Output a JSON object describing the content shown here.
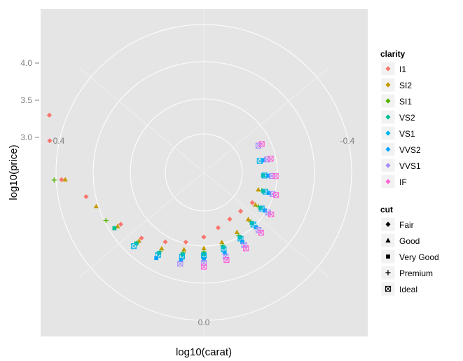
{
  "chart_data": {
    "type": "scatter",
    "coord": "polar",
    "title": "",
    "xlabel": "log10(carat)",
    "ylabel": "log10(price)",
    "theta_ticks": [
      "0.4",
      "-0.4",
      "0.0"
    ],
    "r_ticks": [
      "3.0",
      "3.5",
      "4.0"
    ],
    "grid": true,
    "legend_position": "right",
    "color_legend": {
      "title": "clarity",
      "items": [
        {
          "label": "I1",
          "color": "#F8766D"
        },
        {
          "label": "SI2",
          "color": "#C49A00"
        },
        {
          "label": "SI1",
          "color": "#53B400"
        },
        {
          "label": "VS2",
          "color": "#00C094"
        },
        {
          "label": "VS1",
          "color": "#00B6EB"
        },
        {
          "label": "VVS2",
          "color": "#06A4FF"
        },
        {
          "label": "VVS1",
          "color": "#A58AFF"
        },
        {
          "label": "IF",
          "color": "#FB61D7"
        }
      ]
    },
    "shape_legend": {
      "title": "cut",
      "items": [
        {
          "label": "Fair",
          "shape": "diamond"
        },
        {
          "label": "Good",
          "shape": "triangle"
        },
        {
          "label": "Very Good",
          "shape": "square"
        },
        {
          "label": "Premium",
          "shape": "plus"
        },
        {
          "label": "Ideal",
          "shape": "boxed-x"
        }
      ]
    },
    "series_points": [
      {
        "clarity": "I1",
        "cut": "Fair",
        "points": [
          [
            0.38,
            4.2
          ],
          [
            0.35,
            4.1
          ],
          [
            0.3,
            3.9
          ],
          [
            0.27,
            3.6
          ],
          [
            0.2,
            3.3
          ],
          [
            0.15,
            3.2
          ],
          [
            0.1,
            3.05
          ],
          [
            0.05,
            2.95
          ],
          [
            0.0,
            2.85
          ],
          [
            -0.05,
            2.75
          ],
          [
            -0.1,
            2.7
          ],
          [
            -0.15,
            2.7
          ],
          [
            -0.2,
            2.75
          ]
        ]
      },
      {
        "clarity": "SI2",
        "cut": "Good",
        "points": [
          [
            0.3,
            3.85
          ],
          [
            0.25,
            3.5
          ],
          [
            0.2,
            3.35
          ],
          [
            0.15,
            3.25
          ],
          [
            0.1,
            3.15
          ],
          [
            0.05,
            3.05
          ],
          [
            0.0,
            3.0
          ],
          [
            -0.05,
            2.95
          ],
          [
            -0.1,
            2.9
          ],
          [
            -0.15,
            2.85
          ],
          [
            -0.2,
            2.8
          ],
          [
            -0.25,
            2.75
          ]
        ]
      },
      {
        "clarity": "SI1",
        "cut": "Premium",
        "points": [
          [
            0.3,
            4.0
          ],
          [
            0.22,
            3.45
          ],
          [
            0.15,
            3.3
          ],
          [
            0.1,
            3.2
          ],
          [
            0.05,
            3.1
          ],
          [
            0.0,
            3.05
          ],
          [
            -0.05,
            3.0
          ],
          [
            -0.1,
            2.95
          ],
          [
            -0.15,
            2.9
          ],
          [
            -0.2,
            2.85
          ],
          [
            -0.25,
            2.8
          ]
        ]
      },
      {
        "clarity": "VS2",
        "cut": "Very Good",
        "points": [
          [
            0.2,
            3.4
          ],
          [
            0.15,
            3.3
          ],
          [
            0.1,
            3.22
          ],
          [
            0.05,
            3.12
          ],
          [
            0.0,
            3.08
          ],
          [
            -0.05,
            3.02
          ],
          [
            -0.1,
            2.98
          ],
          [
            -0.15,
            2.92
          ],
          [
            -0.2,
            2.88
          ],
          [
            -0.25,
            2.82
          ],
          [
            -0.3,
            2.78
          ]
        ]
      },
      {
        "clarity": "VS1",
        "cut": "Ideal",
        "points": [
          [
            0.15,
            3.35
          ],
          [
            0.1,
            3.25
          ],
          [
            0.05,
            3.15
          ],
          [
            0.0,
            3.1
          ],
          [
            -0.05,
            3.05
          ],
          [
            -0.1,
            3.0
          ],
          [
            -0.15,
            2.95
          ],
          [
            -0.2,
            2.9
          ],
          [
            -0.25,
            2.85
          ],
          [
            -0.3,
            2.8
          ],
          [
            -0.35,
            2.75
          ]
        ]
      },
      {
        "clarity": "VVS2",
        "cut": "Very Good",
        "points": [
          [
            0.1,
            3.3
          ],
          [
            0.05,
            3.2
          ],
          [
            0.0,
            3.15
          ],
          [
            -0.05,
            3.1
          ],
          [
            -0.1,
            3.05
          ],
          [
            -0.15,
            3.0
          ],
          [
            -0.2,
            2.95
          ],
          [
            -0.25,
            2.9
          ],
          [
            -0.3,
            2.85
          ],
          [
            -0.35,
            2.8
          ]
        ]
      },
      {
        "clarity": "VVS1",
        "cut": "Ideal",
        "points": [
          [
            0.05,
            3.25
          ],
          [
            0.0,
            3.2
          ],
          [
            -0.05,
            3.15
          ],
          [
            -0.1,
            3.1
          ],
          [
            -0.15,
            3.05
          ],
          [
            -0.2,
            3.0
          ],
          [
            -0.25,
            2.95
          ],
          [
            -0.3,
            2.9
          ],
          [
            -0.35,
            2.85
          ],
          [
            -0.4,
            2.8
          ]
        ]
      },
      {
        "clarity": "IF",
        "cut": "Ideal",
        "points": [
          [
            0.0,
            3.25
          ],
          [
            -0.05,
            3.2
          ],
          [
            -0.1,
            3.15
          ],
          [
            -0.15,
            3.1
          ],
          [
            -0.2,
            3.05
          ],
          [
            -0.25,
            3.0
          ],
          [
            -0.3,
            2.95
          ],
          [
            -0.35,
            2.9
          ],
          [
            -0.4,
            2.85
          ]
        ]
      }
    ]
  }
}
